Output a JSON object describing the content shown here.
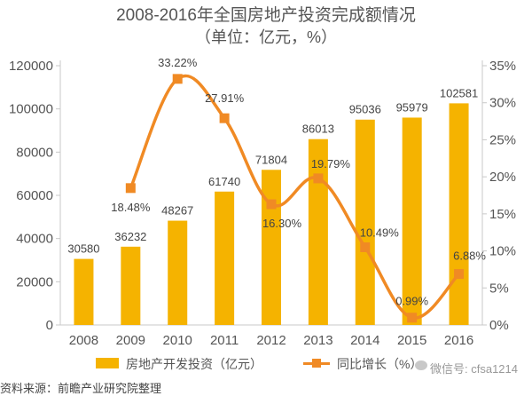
{
  "chart_data": {
    "type": "bar",
    "title": "2008-2016年全国房地产投资完成额情况",
    "subtitle": "（单位：亿元，%）",
    "categories": [
      "2008",
      "2009",
      "2010",
      "2011",
      "2012",
      "2013",
      "2014",
      "2015",
      "2016"
    ],
    "series": [
      {
        "name": "房地产开发投资（亿元）",
        "type": "bar",
        "axis": "left",
        "color": "#f5b300",
        "values": [
          30580,
          36232,
          48267,
          61740,
          71804,
          86013,
          95036,
          95979,
          102581
        ],
        "labels": [
          "30580",
          "36232",
          "48267",
          "61740",
          "71804",
          "86013",
          "95036",
          "95979",
          "102581"
        ]
      },
      {
        "name": "同比增长（%）",
        "type": "line",
        "axis": "right",
        "color": "#f08a24",
        "values": [
          null,
          18.48,
          33.22,
          27.91,
          16.3,
          19.79,
          10.49,
          0.99,
          6.88
        ],
        "labels": [
          null,
          "18.48%",
          "33.22%",
          "27.91%",
          "16.30%",
          "19.79%",
          "10.49%",
          "0.99%",
          "6.88%"
        ]
      }
    ],
    "y_left": {
      "min": 0,
      "max": 120000,
      "ticks": [
        0,
        20000,
        40000,
        60000,
        80000,
        100000,
        120000
      ],
      "tick_labels": [
        "0",
        "20000",
        "40000",
        "60000",
        "80000",
        "100000",
        "120000"
      ]
    },
    "y_right": {
      "min": 0,
      "max": 35,
      "ticks": [
        0,
        5,
        10,
        15,
        20,
        25,
        30,
        35
      ],
      "tick_labels": [
        "0%",
        "5%",
        "10%",
        "15%",
        "20%",
        "25%",
        "30%",
        "35%"
      ]
    },
    "grid": false,
    "legend_position": "bottom"
  },
  "legend": {
    "bar_label": "房地产开发投资（亿元）",
    "line_label": "同比增长（%）"
  },
  "source_note": "资料来源：前瞻产业研究院整理",
  "watermark": "微信号: cfsa1214"
}
